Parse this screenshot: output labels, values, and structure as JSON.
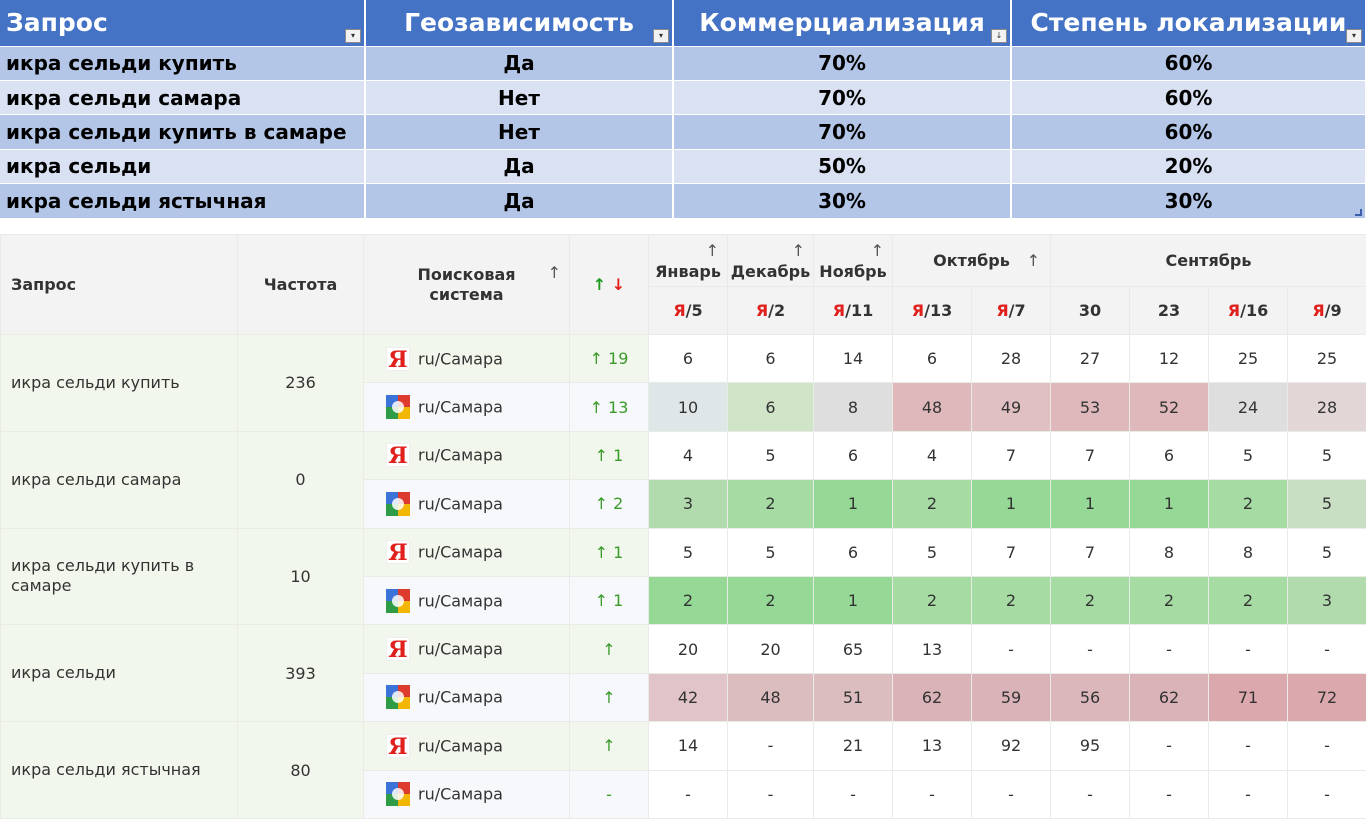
{
  "summary": {
    "headers": [
      "Запрос",
      "Геозависимость",
      "Коммерциализация",
      "Степень локализации"
    ],
    "rows": [
      [
        "икра сельди купить",
        "Да",
        "70%",
        "60%"
      ],
      [
        "икра сельди самара",
        "Нет",
        "70%",
        "60%"
      ],
      [
        "икра сельди купить в самаре",
        "Нет",
        "70%",
        "60%"
      ],
      [
        "икра сельди",
        "Да",
        "50%",
        "20%"
      ],
      [
        "икра сельди ястычная",
        "Да",
        "30%",
        "30%"
      ]
    ]
  },
  "rankings": {
    "headers": {
      "query": "Запрос",
      "frequency": "Частота",
      "engine_line1": "Поисковая",
      "engine_line2": "система",
      "trend_up": "↑",
      "trend_down": "↓",
      "sort_arrow": "↑",
      "months": [
        "Январь",
        "Декабрь",
        "Ноябрь",
        "Октябрь",
        "Сентябрь"
      ]
    },
    "columns": [
      {
        "prefix": "Я",
        "suffix": "/5"
      },
      {
        "prefix": "Я",
        "suffix": "/2"
      },
      {
        "prefix": "Я",
        "suffix": "/11"
      },
      {
        "prefix": "Я",
        "suffix": "/13"
      },
      {
        "prefix": "Я",
        "suffix": "/7"
      },
      {
        "prefix": "",
        "suffix": "30"
      },
      {
        "prefix": "",
        "suffix": "23"
      },
      {
        "prefix": "Я",
        "suffix": "/16"
      },
      {
        "prefix": "Я",
        "suffix": "/9"
      }
    ],
    "region": "ru/Самара",
    "groups": [
      {
        "query": "икра сельди купить",
        "frequency": "236",
        "yandex": {
          "trend": "↑ 19",
          "positions": [
            "6",
            "6",
            "14",
            "6",
            "28",
            "27",
            "12",
            "25",
            "25"
          ]
        },
        "google": {
          "trend": "↑ 13",
          "positions": [
            "10",
            "6",
            "8",
            "48",
            "49",
            "53",
            "52",
            "24",
            "28"
          ]
        }
      },
      {
        "query": "икра сельди самара",
        "frequency": "0",
        "yandex": {
          "trend": "↑ 1",
          "positions": [
            "4",
            "5",
            "6",
            "4",
            "7",
            "7",
            "6",
            "5",
            "5"
          ]
        },
        "google": {
          "trend": "↑ 2",
          "positions": [
            "3",
            "2",
            "1",
            "2",
            "1",
            "1",
            "1",
            "2",
            "5"
          ]
        }
      },
      {
        "query": "икра сельди купить в самаре",
        "frequency": "10",
        "yandex": {
          "trend": "↑ 1",
          "positions": [
            "5",
            "5",
            "6",
            "5",
            "7",
            "7",
            "8",
            "8",
            "5"
          ]
        },
        "google": {
          "trend": "↑ 1",
          "positions": [
            "2",
            "2",
            "1",
            "2",
            "2",
            "2",
            "2",
            "2",
            "3"
          ]
        }
      },
      {
        "query": "икра сельди",
        "frequency": "393",
        "yandex": {
          "trend": "↑",
          "positions": [
            "20",
            "20",
            "65",
            "13",
            "-",
            "-",
            "-",
            "-",
            "-"
          ]
        },
        "google": {
          "trend": "↑",
          "positions": [
            "42",
            "48",
            "51",
            "62",
            "59",
            "56",
            "62",
            "71",
            "72"
          ]
        }
      },
      {
        "query": "икра сельди ястычная",
        "frequency": "80",
        "yandex": {
          "trend": "↑",
          "positions": [
            "14",
            "-",
            "21",
            "13",
            "92",
            "95",
            "-",
            "-",
            "-"
          ]
        },
        "google": {
          "trend": "-",
          "positions": [
            "-",
            "-",
            "-",
            "-",
            "-",
            "-",
            "-",
            "-",
            "-"
          ]
        }
      }
    ],
    "cell_colors_google": [
      [
        "#dfe6e8",
        "#d0e4c7",
        "#dedede",
        "#dfb8bc",
        "#e0c0c3",
        "#dfb8bc",
        "#dfb8bc",
        "#dedede",
        "#e3d6d6"
      ],
      [
        "#b2dbad",
        "#a6dba4",
        "#96d996",
        "#a6dba4",
        "#96d996",
        "#96d996",
        "#96d996",
        "#a6dba4",
        "#c8dfc3"
      ],
      [
        "#96d996",
        "#96d996",
        "#96d996",
        "#a6dba4",
        "#a6dba4",
        "#a6dba4",
        "#a6dba4",
        "#a6dba4",
        "#b2dbad"
      ],
      [
        "#e0c4c7",
        "#dbbdc0",
        "#dbbdc0",
        "#d9b3b8",
        "#d9b3b8",
        "#dbb7bb",
        "#d9b3b8",
        "#dba8ae",
        "#dba8ae"
      ],
      [
        "#ffffff",
        "#ffffff",
        "#ffffff",
        "#ffffff",
        "#ffffff",
        "#ffffff",
        "#ffffff",
        "#ffffff",
        "#ffffff"
      ]
    ]
  }
}
